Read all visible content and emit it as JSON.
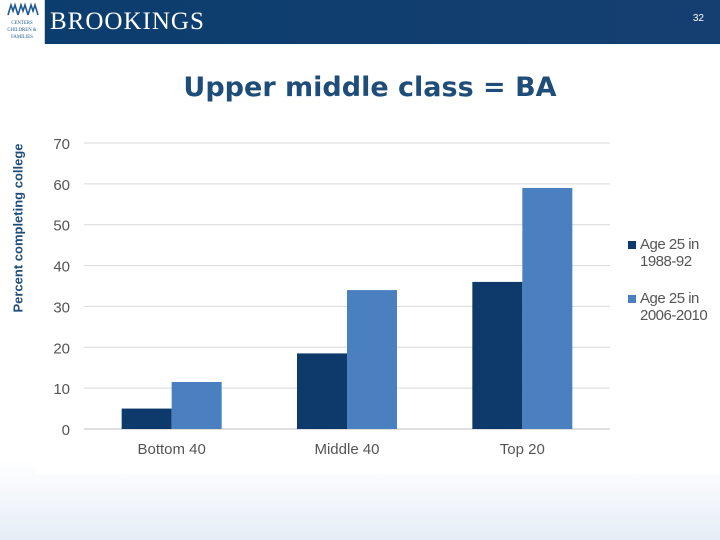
{
  "header": {
    "logo_mark_lines": [
      "CENTERS",
      "CHILDREN &",
      "FAMILIES"
    ],
    "brand": "BROOKINGS",
    "slide_number": "32"
  },
  "slide": {
    "title": "Upper middle class = BA"
  },
  "chart_data": {
    "type": "bar",
    "title": "",
    "xlabel": "",
    "ylabel": "Percent completing college",
    "categories": [
      "Bottom 40",
      "Middle 40",
      "Top 20"
    ],
    "series": [
      {
        "name": "Age 25 in 1988-92",
        "values": [
          5,
          18.5,
          36
        ],
        "color": "#0d3a6b"
      },
      {
        "name": "Age 25 in 2006-2010",
        "values": [
          11.5,
          34,
          59
        ],
        "color": "#4a7fc0"
      }
    ],
    "ylim": [
      0,
      70
    ],
    "yticks": [
      0,
      10,
      20,
      30,
      40,
      50,
      60,
      70
    ],
    "grid": true,
    "legend": "right"
  }
}
